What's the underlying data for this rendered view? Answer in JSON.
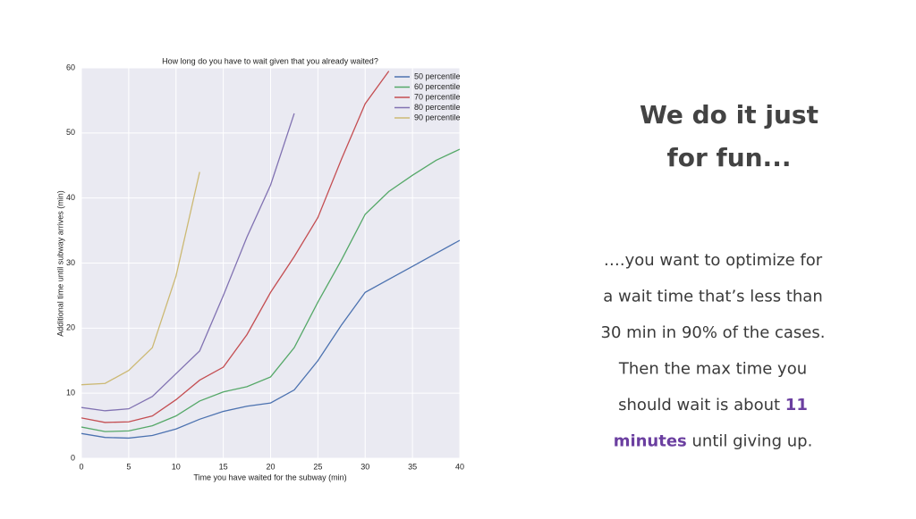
{
  "chart_data": {
    "type": "line",
    "title": "How long do you have to wait given that you already waited?",
    "xlabel": "Time you have waited for the subway (min)",
    "ylabel": "Additional time until subway arrives (min)",
    "x": [
      0,
      2.5,
      5,
      7.5,
      10,
      12.5,
      15,
      17.5,
      20,
      22.5,
      25,
      27.5,
      30,
      32.5,
      35,
      37.5,
      40
    ],
    "series": [
      {
        "name": "50 percentile",
        "color": "#4c72b0",
        "values": [
          3.8,
          3.2,
          3.1,
          3.5,
          4.5,
          6,
          7.2,
          8,
          8.5,
          10.5,
          15,
          20.5,
          25.5,
          27.5,
          29.5,
          31.5,
          33.5
        ]
      },
      {
        "name": "60 percentile",
        "color": "#55a868",
        "values": [
          4.8,
          4.1,
          4.2,
          5,
          6.5,
          8.8,
          10.2,
          11,
          12.5,
          17,
          24,
          30.5,
          37.5,
          41,
          43.5,
          45.8,
          47.5
        ]
      },
      {
        "name": "70 percentile",
        "color": "#c44e52",
        "values": [
          6.2,
          5.5,
          5.6,
          6.5,
          9,
          12,
          14,
          19,
          25.5,
          31,
          37,
          46,
          54.5,
          59.5,
          null,
          null,
          null
        ]
      },
      {
        "name": "80 percentile",
        "color": "#8172b2",
        "values": [
          7.8,
          7.3,
          7.6,
          9.5,
          13,
          16.5,
          25,
          34,
          42,
          53,
          null,
          null,
          null,
          null,
          null,
          null,
          null
        ]
      },
      {
        "name": "90 percentile",
        "color": "#ccb974",
        "values": [
          11.3,
          11.5,
          13.5,
          17,
          28,
          44,
          null,
          null,
          null,
          null,
          null,
          null,
          null,
          null,
          null,
          null,
          null
        ]
      }
    ],
    "xlim": [
      0,
      40
    ],
    "xticks": [
      0,
      5,
      10,
      15,
      20,
      25,
      30,
      35,
      40
    ],
    "ylim": [
      0,
      60
    ],
    "yticks": [
      0,
      10,
      20,
      30,
      40,
      50,
      60
    ],
    "grid": true,
    "legend": "upper right"
  },
  "slide": {
    "heading": [
      "We do it just",
      "for fun..."
    ],
    "highlight_color": "#6b3fa0",
    "body": [
      [
        {
          "text": "….you want to optimize for"
        }
      ],
      [
        {
          "text": "a wait time that’s less than"
        }
      ],
      [
        {
          "text": "30 min in 90% of the cases."
        }
      ],
      [
        {
          "text": "Then the max time you"
        }
      ],
      [
        {
          "text": "should wait is about "
        },
        {
          "text": "11",
          "highlight": true
        }
      ],
      [
        {
          "text": "minutes",
          "highlight": true
        },
        {
          "text": " until giving up."
        }
      ]
    ]
  }
}
